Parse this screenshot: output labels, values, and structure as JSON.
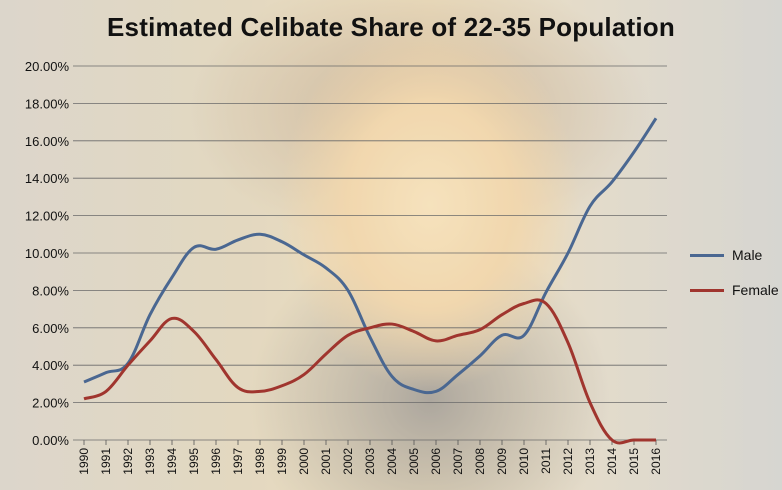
{
  "colors": {
    "male": "#4a6791",
    "female": "#a0352e"
  },
  "chart_data": {
    "type": "line",
    "title": "Estimated Celibate Share of 22-35 Population",
    "xlabel": "",
    "ylabel": "",
    "ylim": [
      0,
      20
    ],
    "yticks": [
      "0.00%",
      "2.00%",
      "4.00%",
      "6.00%",
      "8.00%",
      "10.00%",
      "12.00%",
      "14.00%",
      "16.00%",
      "18.00%",
      "20.00%"
    ],
    "categories": [
      "1990",
      "1991",
      "1992",
      "1993",
      "1994",
      "1995",
      "1996",
      "1997",
      "1998",
      "1999",
      "2000",
      "2001",
      "2002",
      "2003",
      "2004",
      "2005",
      "2006",
      "2007",
      "2008",
      "2009",
      "2010",
      "2011",
      "2012",
      "2013",
      "2014",
      "2015",
      "2016"
    ],
    "series": [
      {
        "name": "Male",
        "color": "#4a6791",
        "values": [
          3.1,
          3.6,
          4.1,
          6.7,
          8.7,
          10.3,
          10.2,
          10.7,
          11.0,
          10.6,
          9.9,
          9.2,
          8.0,
          5.5,
          3.4,
          2.7,
          2.6,
          3.5,
          4.5,
          5.6,
          5.6,
          7.9,
          10.0,
          12.5,
          13.8,
          15.4,
          17.2
        ]
      },
      {
        "name": "Female",
        "color": "#a0352e",
        "values": [
          2.2,
          2.6,
          4.0,
          5.3,
          6.5,
          5.8,
          4.3,
          2.8,
          2.6,
          2.9,
          3.5,
          4.6,
          5.6,
          6.0,
          6.2,
          5.8,
          5.3,
          5.6,
          5.9,
          6.7,
          7.3,
          7.3,
          5.2,
          2.0,
          0.0,
          0.0,
          0.0
        ]
      }
    ],
    "grid": true,
    "legend_position": "right"
  }
}
